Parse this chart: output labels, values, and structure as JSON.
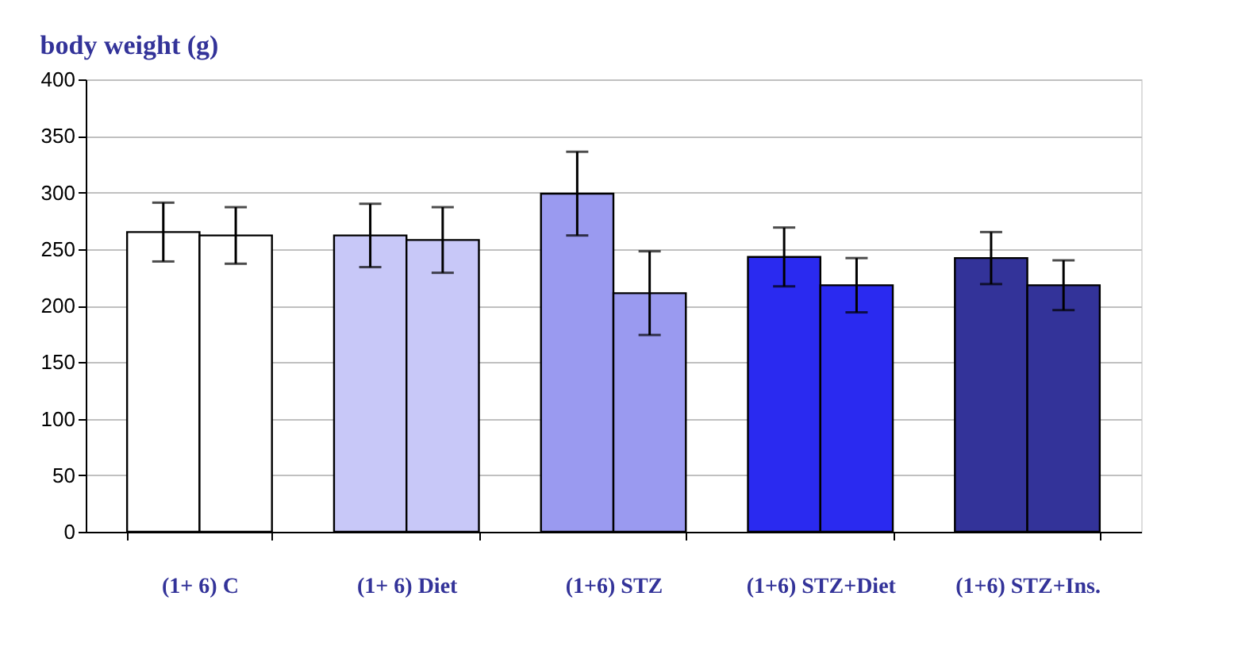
{
  "chart_data": {
    "type": "bar",
    "title": "body weight (g)",
    "categories": [
      "(1+ 6) C",
      "(1+ 6) Diet",
      "(1+6) STZ",
      "(1+6) STZ+Diet",
      "(1+6) STZ+Ins."
    ],
    "series": [
      {
        "values": [
          265,
          262,
          299,
          243,
          242
        ],
        "errors": [
          26,
          28,
          37,
          26,
          23
        ],
        "colors": [
          "#ffffff",
          "#c8c8f8",
          "#9a9af0",
          "#2a2af0",
          "#333399"
        ]
      },
      {
        "values": [
          262,
          258,
          211,
          218,
          218
        ],
        "errors": [
          25,
          29,
          37,
          24,
          22
        ],
        "colors": [
          "#ffffff",
          "#c8c8f8",
          "#9a9af0",
          "#2a2af0",
          "#333399"
        ]
      }
    ],
    "ylim": [
      0,
      400
    ],
    "yticks": [
      0,
      50,
      100,
      150,
      200,
      250,
      300,
      350,
      400
    ],
    "grid": "y"
  }
}
